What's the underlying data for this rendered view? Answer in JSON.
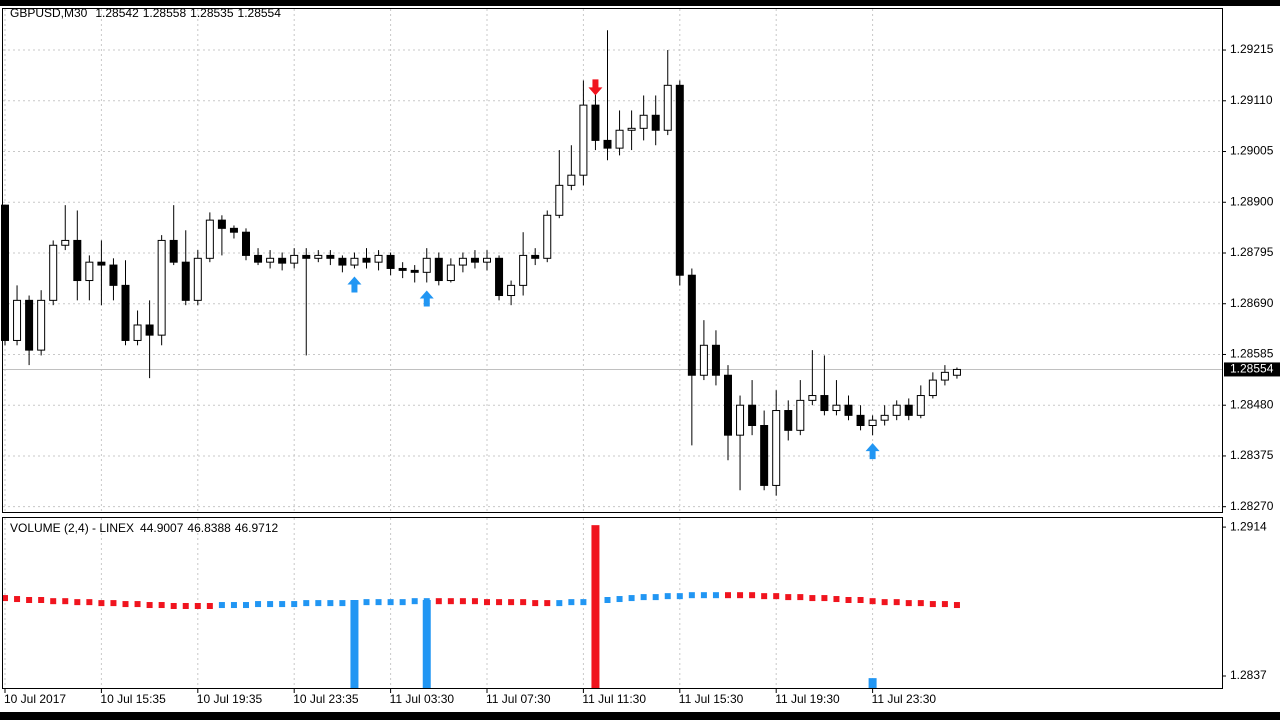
{
  "chart_data": [
    {
      "type": "candlestick",
      "title": "GBPUSD,M30",
      "categories": [
        "10 Jul 2017",
        null,
        null,
        null,
        null,
        null,
        null,
        null,
        "10 Jul 15:35",
        null,
        null,
        null,
        null,
        null,
        null,
        null,
        "10 Jul 19:35",
        null,
        null,
        null,
        null,
        null,
        null,
        null,
        "10 Jul 23:35",
        null,
        null,
        null,
        null,
        null,
        null,
        null,
        "11 Jul 03:30",
        null,
        null,
        null,
        null,
        null,
        null,
        null,
        "11 Jul 07:30",
        null,
        null,
        null,
        null,
        null,
        null,
        null,
        "11 Jul 11:30",
        null,
        null,
        null,
        null,
        null,
        null,
        null,
        "11 Jul 15:30",
        null,
        null,
        null,
        null,
        null,
        null,
        null,
        "11 Jul 19:30",
        null,
        null,
        null,
        null,
        null,
        null,
        null,
        "11 Jul 23:30",
        null,
        null,
        null,
        null,
        null,
        null,
        null
      ],
      "open": [
        1.28894,
        1.28614,
        1.28697,
        1.28594,
        1.28697,
        1.28811,
        1.28821,
        1.28738,
        1.28776,
        1.2877,
        1.28728,
        1.28614,
        1.28646,
        1.28625,
        1.28821,
        1.28776,
        1.28697,
        1.28784,
        1.28863,
        1.28846,
        1.28838,
        1.2879,
        1.28776,
        1.28784,
        1.28774,
        1.2879,
        1.28784,
        1.2879,
        1.28784,
        1.2877,
        1.28784,
        1.28776,
        1.2879,
        1.28763,
        1.28759,
        1.28755,
        1.28784,
        1.28738,
        1.2877,
        1.28784,
        1.28776,
        1.28784,
        1.28707,
        1.28728,
        1.2879,
        1.28784,
        1.28873,
        1.28935,
        1.28956,
        1.29101,
        1.29028,
        1.29012,
        1.29049,
        1.29053,
        1.2908,
        1.29049,
        1.29142,
        1.28749,
        1.28542,
        1.28604,
        1.28542,
        1.28418,
        1.2848,
        1.28438,
        1.28314,
        1.28469,
        1.28428,
        1.2849,
        1.285,
        1.28469,
        1.2848,
        1.28459,
        1.28438,
        1.28449,
        1.28459,
        1.2848,
        1.28459,
        1.285,
        1.28532,
        1.28542
      ],
      "high": [
        1.28894,
        1.28728,
        1.28707,
        1.28718,
        1.28821,
        1.28894,
        1.28883,
        1.2879,
        1.28821,
        1.28784,
        1.2878,
        1.28676,
        1.28697,
        1.28832,
        1.28894,
        1.28842,
        1.28801,
        1.28879,
        1.28873,
        1.28852,
        1.28846,
        1.28805,
        1.28801,
        1.28796,
        1.28805,
        1.28805,
        1.28801,
        1.28801,
        1.2879,
        1.28796,
        1.28805,
        1.28801,
        1.28796,
        1.28776,
        1.2877,
        1.28805,
        1.28796,
        1.28784,
        1.28796,
        1.28801,
        1.28801,
        1.2879,
        1.28738,
        1.28838,
        1.28805,
        1.28883,
        1.29008,
        1.29018,
        1.29152,
        1.29142,
        1.29256,
        1.2909,
        1.2909,
        1.29121,
        1.29121,
        1.29215,
        1.29152,
        1.28763,
        1.28656,
        1.28635,
        1.28563,
        1.285,
        1.28532,
        1.28469,
        1.28511,
        1.2849,
        1.28532,
        1.28594,
        1.28583,
        1.28532,
        1.285,
        1.2848,
        1.28459,
        1.2848,
        1.2849,
        1.28494,
        1.28521,
        1.28548,
        1.28563,
        1.28558
      ],
      "low": [
        1.28604,
        1.28604,
        1.28563,
        1.28583,
        1.28687,
        1.28801,
        1.28697,
        1.28697,
        1.28687,
        1.28697,
        1.28604,
        1.28604,
        1.28536,
        1.28604,
        1.2877,
        1.28687,
        1.28687,
        1.28776,
        1.2879,
        1.28825,
        1.2878,
        1.2877,
        1.28763,
        1.28759,
        1.28763,
        1.28583,
        1.28776,
        1.2877,
        1.28755,
        1.28763,
        1.28763,
        1.28759,
        1.28749,
        1.28743,
        1.28734,
        1.28734,
        1.28728,
        1.28734,
        1.28755,
        1.28763,
        1.28759,
        1.28697,
        1.28687,
        1.28707,
        1.2877,
        1.28776,
        1.28867,
        1.28925,
        1.28935,
        1.29008,
        1.28987,
        1.28997,
        1.29008,
        1.29028,
        1.29018,
        1.29039,
        1.28728,
        1.28397,
        1.28532,
        1.28521,
        1.28366,
        1.28304,
        1.28418,
        1.28304,
        1.28293,
        1.28407,
        1.28418,
        1.2848,
        1.28459,
        1.28459,
        1.28449,
        1.28428,
        1.28418,
        1.28438,
        1.28449,
        1.28449,
        1.28453,
        1.28494,
        1.28521,
        1.28535
      ],
      "close": [
        1.28614,
        1.28697,
        1.28594,
        1.28697,
        1.28811,
        1.28821,
        1.28738,
        1.28776,
        1.2877,
        1.28728,
        1.28614,
        1.28646,
        1.28625,
        1.28821,
        1.28776,
        1.28697,
        1.28784,
        1.28863,
        1.28846,
        1.28838,
        1.2879,
        1.28776,
        1.28784,
        1.28774,
        1.2879,
        1.28784,
        1.2879,
        1.28784,
        1.2877,
        1.28784,
        1.28776,
        1.2879,
        1.28763,
        1.28759,
        1.28755,
        1.28784,
        1.28738,
        1.2877,
        1.28784,
        1.28776,
        1.28784,
        1.28707,
        1.28728,
        1.2879,
        1.28784,
        1.28873,
        1.28935,
        1.28956,
        1.29101,
        1.29028,
        1.29012,
        1.29049,
        1.29053,
        1.2908,
        1.29049,
        1.29142,
        1.28749,
        1.28542,
        1.28604,
        1.28542,
        1.28418,
        1.2848,
        1.28438,
        1.28314,
        1.28469,
        1.28428,
        1.2849,
        1.285,
        1.28469,
        1.2848,
        1.28459,
        1.28438,
        1.28449,
        1.28459,
        1.2848,
        1.28459,
        1.285,
        1.28532,
        1.28548,
        1.28554
      ],
      "ylim": [
        1.28259,
        1.29302
      ],
      "yticks": [
        1.29215,
        {
          "value": 1.2911,
          "label": "1.29110"
        },
        1.29005,
        {
          "value": 1.289,
          "label": "1.28900"
        },
        1.28795,
        {
          "value": 1.2869,
          "label": "1.28690"
        },
        1.28585,
        {
          "value": 1.2848,
          "label": "1.28480"
        },
        1.28375,
        {
          "value": 1.2827,
          "label": "1.28270"
        }
      ],
      "grid": true,
      "bull_color": "#ffffff",
      "bear_color": "#000000",
      "price_line_color": "#c0c0c0"
    },
    {
      "type": "indicator",
      "title": "VOLUME (2,4) - LINEX",
      "readings": [
        44.9007,
        46.8388,
        46.9712
      ],
      "ylim": [
        1.28308,
        1.29187
      ],
      "yticks": [
        1.2914,
        1.2837
      ],
      "grid": true,
      "down_dots": {
        "color": "#f0141e",
        "values": [
          1.28773,
          1.28768,
          1.28763,
          1.28763,
          1.28757,
          1.28757,
          1.28752,
          1.28752,
          1.28747,
          1.28747,
          1.28742,
          1.28742,
          1.28737,
          1.28737,
          1.28732,
          1.28732,
          1.28732,
          1.28732,
          null,
          null,
          null,
          null,
          null,
          null,
          null,
          null,
          null,
          null,
          null,
          null,
          null,
          null,
          null,
          null,
          null,
          null,
          1.28757,
          1.28757,
          1.28757,
          1.28757,
          1.28752,
          1.28752,
          1.28752,
          1.28752,
          1.28747,
          1.28747,
          null,
          null,
          null,
          null,
          null,
          null,
          null,
          null,
          null,
          null,
          null,
          null,
          null,
          null,
          1.28788,
          1.28788,
          1.28788,
          1.28783,
          1.28783,
          1.28778,
          1.28778,
          1.28773,
          1.28773,
          1.28768,
          1.28763,
          1.28763,
          1.28757,
          1.28752,
          1.28752,
          1.28747,
          1.28747,
          1.28742,
          1.28742,
          1.28737
        ]
      },
      "up_dots": {
        "color": "#2196f3",
        "values": [
          null,
          null,
          null,
          null,
          null,
          null,
          null,
          null,
          null,
          null,
          null,
          null,
          null,
          null,
          null,
          null,
          null,
          null,
          1.28737,
          1.28737,
          1.28737,
          1.28742,
          1.28742,
          1.28742,
          1.28742,
          1.28747,
          1.28747,
          1.28747,
          1.28747,
          1.28747,
          1.28752,
          1.28752,
          1.28752,
          1.28752,
          1.28757,
          1.28757,
          null,
          null,
          null,
          null,
          null,
          null,
          null,
          null,
          null,
          null,
          1.28747,
          1.28752,
          1.28752,
          1.28757,
          1.28763,
          1.28768,
          1.28773,
          1.28778,
          1.28778,
          1.28783,
          1.28783,
          1.28788,
          1.28788,
          1.28788,
          null,
          null,
          null,
          null,
          null,
          null,
          null,
          null,
          null,
          null,
          null,
          null,
          null,
          null,
          null,
          null,
          null,
          null,
          null,
          null
        ]
      },
      "up_signals": {
        "color": "#2196f3",
        "x": [
          29,
          35,
          72
        ],
        "values": [
          1.28763,
          1.28763,
          1.28359
        ]
      },
      "down_signals": {
        "color": "#f0141e",
        "x": [
          49
        ],
        "values": [
          1.2915
        ]
      }
    }
  ]
}
